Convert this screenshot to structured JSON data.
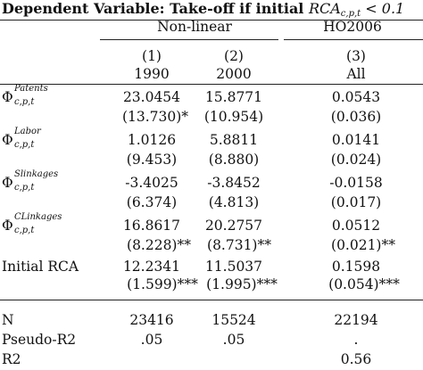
{
  "title": {
    "text": "Dependent Variable: Take-off if initial ",
    "math_main": "RCA",
    "math_sub": "c,p,t",
    "math_tail": " < 0.1"
  },
  "groups": {
    "nonlinear": "Non-linear",
    "ho2006": "HO2006"
  },
  "columns": [
    {
      "num": "(1)",
      "period": "1990"
    },
    {
      "num": "(2)",
      "period": "2000"
    },
    {
      "num": "(3)",
      "period": "All"
    }
  ],
  "phi_rows": [
    {
      "symbol": "Φ",
      "superscript": "Patents",
      "subscript": "c,p,t",
      "coef": [
        "23.0454",
        "15.8771",
        "0.0543"
      ],
      "se": [
        "(13.730)*",
        "(10.954)",
        "(0.036)"
      ]
    },
    {
      "symbol": "Φ",
      "superscript": "Labor",
      "subscript": "c,p,t",
      "coef": [
        "1.0126",
        "5.8811",
        "0.0141"
      ],
      "se": [
        "(9.453)",
        "(8.880)",
        "(0.024)"
      ]
    },
    {
      "symbol": "Φ",
      "superscript": "Slinkages",
      "subscript": "c,p,t",
      "coef": [
        "-3.4025",
        "-3.8452",
        "-0.0158"
      ],
      "se": [
        "(6.374)",
        "(4.813)",
        "(0.017)"
      ]
    },
    {
      "symbol": "Φ",
      "superscript": "CLinkages",
      "subscript": "c,p,t",
      "coef": [
        "16.8617",
        "20.2757",
        "0.0512"
      ],
      "se": [
        "(8.228)**",
        "(8.731)**",
        "(0.021)**"
      ]
    }
  ],
  "initial_rca": {
    "label": "Initial RCA",
    "coef": [
      "12.2341",
      "11.5037",
      "0.1598"
    ],
    "se": [
      "(1.599)***",
      "(1.995)***",
      "(0.054)***"
    ]
  },
  "stats": [
    {
      "label": "N",
      "values": [
        "23416",
        "15524",
        "22194"
      ]
    },
    {
      "label": "Pseudo-R2",
      "values": [
        ".05",
        ".05",
        "."
      ]
    },
    {
      "label": "R2",
      "values": [
        "",
        "",
        "0.56"
      ]
    }
  ]
}
